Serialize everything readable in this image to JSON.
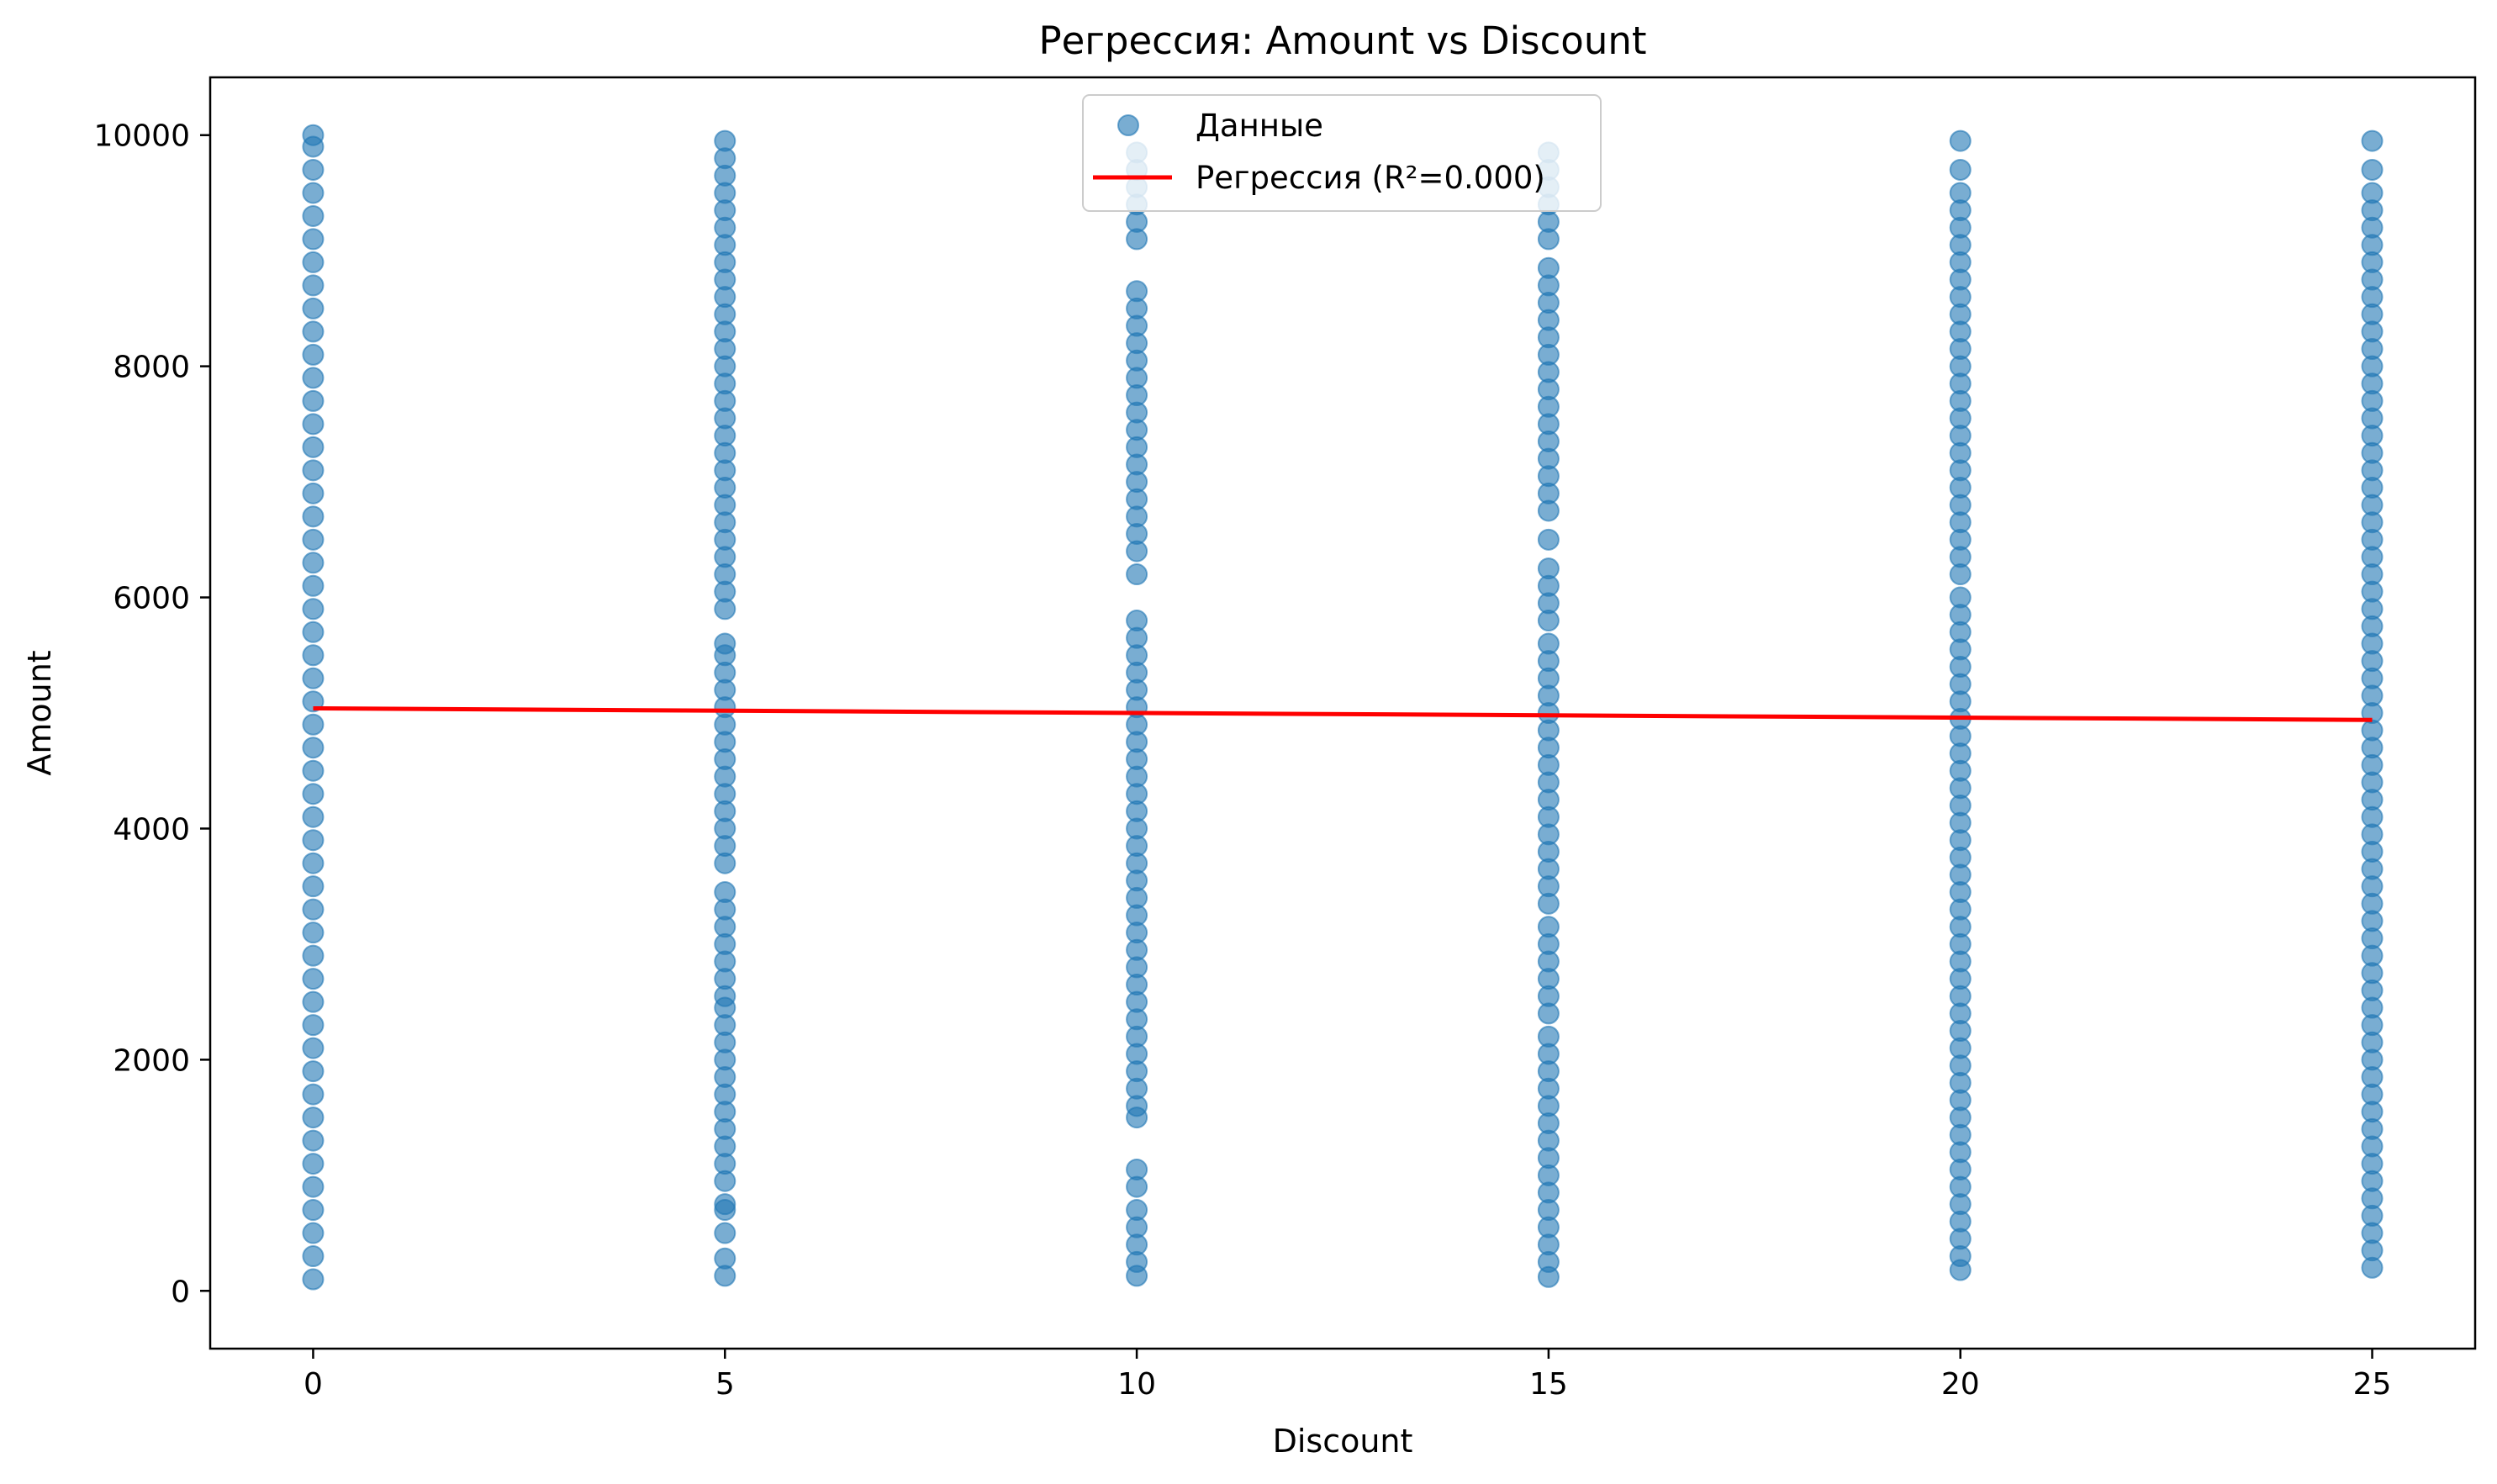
{
  "chart_data": {
    "type": "scatter",
    "title": "Регрессия: Amount vs Discount",
    "xlabel": "Discount",
    "ylabel": "Amount",
    "xlim": [
      -1.25,
      26.25
    ],
    "ylim": [
      -500,
      10500
    ],
    "x_ticks": [
      0,
      5,
      10,
      15,
      20,
      25
    ],
    "y_ticks": [
      0,
      2000,
      4000,
      6000,
      8000,
      10000
    ],
    "grid": false,
    "legend_position": "top-center",
    "series": [
      {
        "name": "Данные",
        "kind": "scatter",
        "color": "#1f77b4",
        "alpha": 0.6,
        "groups": [
          {
            "x": 0,
            "values": [
              100,
              300,
              500,
              700,
              900,
              1100,
              1300,
              1500,
              1700,
              1900,
              2100,
              2300,
              2500,
              2700,
              2900,
              3100,
              3300,
              3500,
              3700,
              3900,
              4100,
              4300,
              4500,
              4700,
              4900,
              5100,
              5300,
              5500,
              5700,
              5900,
              6100,
              6300,
              6500,
              6700,
              6900,
              7100,
              7300,
              7500,
              7700,
              7900,
              8100,
              8300,
              8500,
              8700,
              8900,
              9100,
              9300,
              9500,
              9700,
              9900,
              10000
            ]
          },
          {
            "x": 5,
            "values": [
              130,
              280,
              500,
              700,
              750,
              950,
              1100,
              1250,
              1400,
              1550,
              1700,
              1850,
              2000,
              2150,
              2300,
              2450,
              2550,
              2700,
              2850,
              3000,
              3150,
              3300,
              3450,
              3700,
              3850,
              4000,
              4150,
              4300,
              4450,
              4600,
              4750,
              4900,
              5050,
              5200,
              5350,
              5500,
              5600,
              5900,
              6050,
              6200,
              6350,
              6500,
              6650,
              6800,
              6950,
              7100,
              7250,
              7400,
              7550,
              7700,
              7850,
              8000,
              8150,
              8300,
              8450,
              8600,
              8750,
              8900,
              9050,
              9200,
              9350,
              9500,
              9650,
              9800,
              9950
            ]
          },
          {
            "x": 10,
            "values": [
              130,
              250,
              400,
              550,
              700,
              900,
              1050,
              1500,
              1600,
              1750,
              1900,
              2050,
              2200,
              2350,
              2500,
              2650,
              2800,
              2950,
              3100,
              3250,
              3400,
              3550,
              3700,
              3850,
              4000,
              4150,
              4300,
              4450,
              4600,
              4750,
              4900,
              5050,
              5200,
              5350,
              5500,
              5650,
              5800,
              6200,
              6400,
              6550,
              6700,
              6850,
              7000,
              7150,
              7300,
              7450,
              7600,
              7750,
              7900,
              8050,
              8200,
              8350,
              8500,
              8650,
              9100,
              9250,
              9400,
              9550,
              9700,
              9850
            ]
          },
          {
            "x": 15,
            "values": [
              120,
              250,
              400,
              550,
              700,
              850,
              1000,
              1150,
              1300,
              1450,
              1600,
              1750,
              1900,
              2050,
              2200,
              2400,
              2550,
              2700,
              2850,
              3000,
              3150,
              3350,
              3500,
              3650,
              3800,
              3950,
              4100,
              4250,
              4400,
              4550,
              4700,
              4850,
              5000,
              5150,
              5300,
              5450,
              5600,
              5800,
              5950,
              6100,
              6250,
              6500,
              6750,
              6900,
              7050,
              7200,
              7350,
              7500,
              7650,
              7800,
              7950,
              8100,
              8250,
              8400,
              8550,
              8700,
              8850,
              9100,
              9250,
              9400,
              9550,
              9700,
              9850
            ]
          },
          {
            "x": 20,
            "values": [
              180,
              300,
              450,
              600,
              750,
              900,
              1050,
              1200,
              1350,
              1500,
              1650,
              1800,
              1950,
              2100,
              2250,
              2400,
              2550,
              2700,
              2850,
              3000,
              3150,
              3300,
              3450,
              3600,
              3750,
              3900,
              4050,
              4200,
              4350,
              4500,
              4650,
              4800,
              4950,
              5100,
              5250,
              5400,
              5550,
              5700,
              5850,
              6000,
              6200,
              6350,
              6500,
              6650,
              6800,
              6950,
              7100,
              7250,
              7400,
              7550,
              7700,
              7850,
              8000,
              8150,
              8300,
              8450,
              8600,
              8750,
              8900,
              9050,
              9200,
              9350,
              9500,
              9700,
              9950
            ]
          },
          {
            "x": 25,
            "values": [
              200,
              350,
              500,
              650,
              800,
              950,
              1100,
              1250,
              1400,
              1550,
              1700,
              1850,
              2000,
              2150,
              2300,
              2450,
              2600,
              2750,
              2900,
              3050,
              3200,
              3350,
              3500,
              3650,
              3800,
              3950,
              4100,
              4250,
              4400,
              4550,
              4700,
              4850,
              5000,
              5150,
              5300,
              5450,
              5600,
              5750,
              5900,
              6050,
              6200,
              6350,
              6500,
              6650,
              6800,
              6950,
              7100,
              7250,
              7400,
              7550,
              7700,
              7850,
              8000,
              8150,
              8300,
              8450,
              8600,
              8750,
              8900,
              9050,
              9200,
              9350,
              9500,
              9700,
              9950
            ]
          }
        ]
      },
      {
        "name": "Регрессия (R²=0.000)",
        "kind": "line",
        "color": "#ff0000",
        "x": [
          0,
          25
        ],
        "y": [
          5040,
          4940
        ]
      }
    ]
  }
}
